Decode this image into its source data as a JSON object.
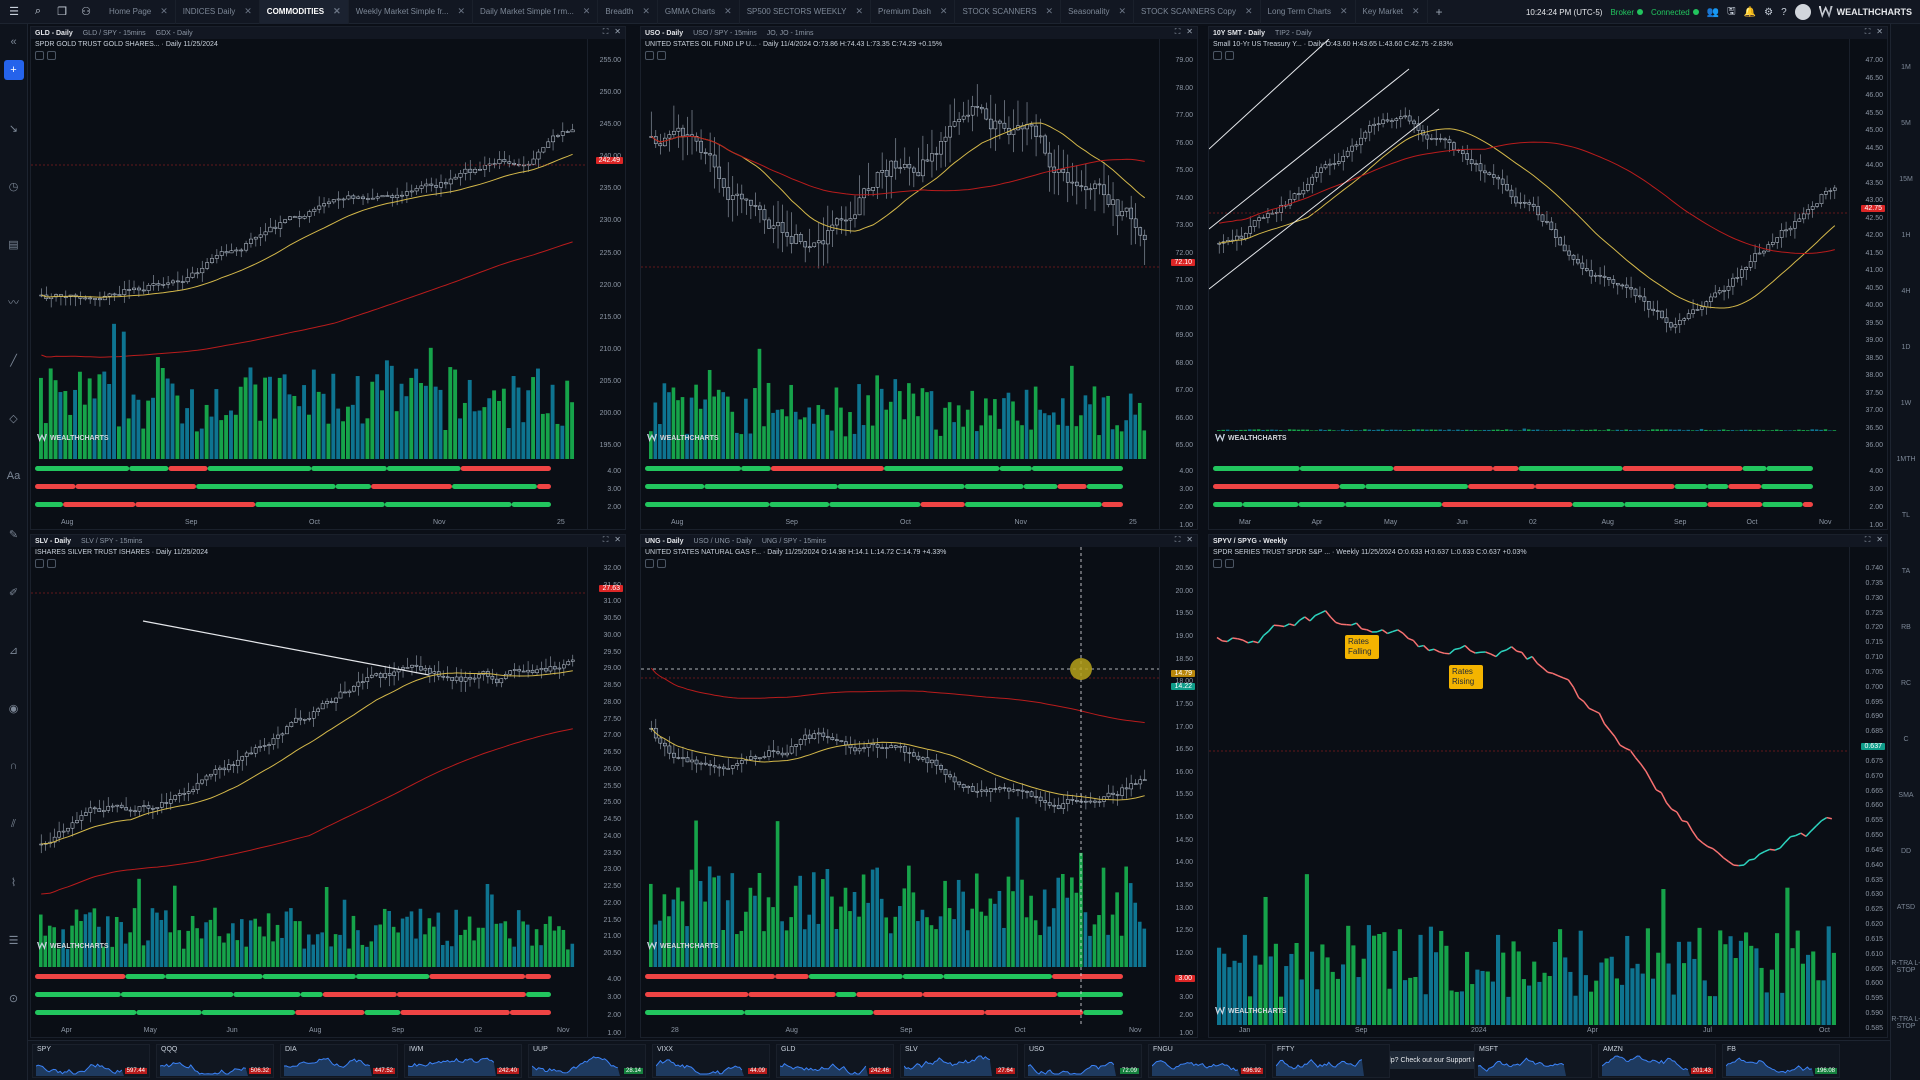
{
  "topbar": {
    "tabs": [
      {
        "label": "Home Page"
      },
      {
        "label": "INDICES Daily"
      },
      {
        "label": "COMMODITIES",
        "active": true
      },
      {
        "label": "Weekly Market Simple fr..."
      },
      {
        "label": "Daily Market Simple f rm..."
      },
      {
        "label": "Breadth"
      },
      {
        "label": "GMMA Charts"
      },
      {
        "label": "SP500 SECTORS WEEKLY"
      },
      {
        "label": "Premium Dash"
      },
      {
        "label": "STOCK SCANNERS"
      },
      {
        "label": "Seasonality"
      },
      {
        "label": "STOCK SCANNERS Copy"
      },
      {
        "label": "Long Term Charts"
      },
      {
        "label": "Key Market"
      }
    ],
    "clock": "10:24:24 PM",
    "timezone": "(UTC-5)",
    "broker_label": "Broker",
    "connected_label": "Connected",
    "brand": "WEALTHCHARTS"
  },
  "right_toolbar": [
    "1M",
    "5M",
    "15M",
    "1H",
    "4H",
    "1D",
    "1W",
    "1MTH",
    "TL",
    "TA",
    "RB",
    "RC",
    "C",
    "SMA",
    "DD",
    "ATSD",
    "R-TRA L-STOP",
    "R-TRA L-STOP"
  ],
  "watermark": "WEALTHCHARTS",
  "panels": {
    "gld": {
      "tabs": [
        "GLD - Daily",
        "GLD / SPY - 15mins",
        "GDX - Daily"
      ],
      "legend": "SPDR GOLD TRUST GOLD SHARES... · Daily 11/25/2024",
      "price_labels": [
        "255.00",
        "250.00",
        "245.00",
        "240.00",
        "235.00",
        "230.00",
        "225.00",
        "220.00",
        "215.00",
        "210.00",
        "205.00",
        "200.00",
        "195.00",
        "4.00",
        "3.00",
        "2.00"
      ],
      "last_price": "242.49",
      "time_labels": [
        "Aug",
        "Sep",
        "Oct",
        "Nov",
        "25"
      ]
    },
    "uso": {
      "tabs": [
        "USO - Daily",
        "USO / SPY - 15mins",
        "JO, JO - 1mins"
      ],
      "legend": "UNITED STATES OIL FUND LP U... · Daily 11/4/2024 O:73.86 H:74.43 L:73.35 C:74.29 +0.15%",
      "price_labels": [
        "79.00",
        "78.00",
        "77.00",
        "76.00",
        "75.00",
        "74.00",
        "73.00",
        "72.00",
        "71.00",
        "70.00",
        "69.00",
        "68.00",
        "67.00",
        "66.00",
        "65.00",
        "4.00",
        "3.00",
        "2.00",
        "1.00"
      ],
      "last_price": "72.10",
      "time_labels": [
        "Aug",
        "Sep",
        "Oct",
        "Nov",
        "25"
      ]
    },
    "tnx": {
      "tabs": [
        "10Y SMT - Daily",
        "TIP2 - Daily"
      ],
      "legend": "Small 10-Yr US Treasury Y... · Daily O:43.60 H:43.65 L:43.60 C:42.75 -2.83%",
      "price_labels": [
        "47.00",
        "46.50",
        "46.00",
        "45.50",
        "45.00",
        "44.50",
        "44.00",
        "43.50",
        "43.00",
        "42.50",
        "42.00",
        "41.50",
        "41.00",
        "40.50",
        "40.00",
        "39.50",
        "39.00",
        "38.50",
        "38.00",
        "37.50",
        "37.00",
        "36.50",
        "36.00",
        "4.00",
        "3.00",
        "2.00",
        "1.00"
      ],
      "last_price": "42.75",
      "time_labels": [
        "Mar",
        "Apr",
        "May",
        "Jun",
        "02",
        "Aug",
        "Sep",
        "Oct",
        "Nov"
      ]
    },
    "slv": {
      "tabs": [
        "SLV - Daily",
        "SLV / SPY - 15mins"
      ],
      "legend": "ISHARES SILVER TRUST ISHARES · Daily 11/25/2024",
      "price_labels": [
        "32.00",
        "31.50",
        "31.00",
        "30.50",
        "30.00",
        "29.50",
        "29.00",
        "28.50",
        "28.00",
        "27.50",
        "27.00",
        "26.50",
        "26.00",
        "25.50",
        "25.00",
        "24.50",
        "24.00",
        "23.50",
        "23.00",
        "22.50",
        "22.00",
        "21.50",
        "21.00",
        "20.50",
        "4.00",
        "3.00",
        "2.00",
        "1.00"
      ],
      "last_price": "27.63",
      "time_labels": [
        "Apr",
        "May",
        "Jun",
        "Aug",
        "Sep",
        "02",
        "Nov"
      ]
    },
    "ung": {
      "tabs": [
        "UNG - Daily",
        "USO / UNG - Daily",
        "UNG / SPY - 15mins"
      ],
      "legend": "UNITED STATES NATURAL GAS F... · Daily 11/25/2024 O:14.98 H:14.1 L:14.72 C:14.79 +4.33%",
      "price_labels": [
        "20.50",
        "20.00",
        "19.50",
        "19.00",
        "18.50",
        "18.00",
        "17.50",
        "17.00",
        "16.50",
        "16.00",
        "15.50",
        "15.00",
        "14.50",
        "14.00",
        "13.50",
        "13.00",
        "12.50",
        "12.00",
        "4.00",
        "3.00",
        "2.00",
        "1.00"
      ],
      "last_price": "14.79",
      "crosshair_price": "14.22",
      "osc_tag": "3.00",
      "time_labels": [
        "28",
        "Aug",
        "Sep",
        "Oct",
        "Nov"
      ]
    },
    "spyv": {
      "tabs": [
        "SPYV / SPYG - Weekly"
      ],
      "legend": "SPDR SERIES TRUST SPDR S&P ... · Weekly 11/25/2024 O:0.633 H:0.637 L:0.633 C:0.637 +0.03%",
      "price_labels": [
        "0.740",
        "0.735",
        "0.730",
        "0.725",
        "0.720",
        "0.715",
        "0.710",
        "0.705",
        "0.700",
        "0.695",
        "0.690",
        "0.685",
        "0.680",
        "0.675",
        "0.670",
        "0.665",
        "0.660",
        "0.655",
        "0.650",
        "0.645",
        "0.640",
        "0.635",
        "0.630",
        "0.625",
        "0.620",
        "0.615",
        "0.610",
        "0.605",
        "0.600",
        "0.595",
        "0.590",
        "0.585"
      ],
      "last_price": "0.637",
      "time_labels": [
        "Jan",
        "Sep",
        "2024",
        "Apr",
        "Jul",
        "Oct"
      ],
      "annotations": [
        "Rates Falling",
        "Rates Rising"
      ]
    }
  },
  "watchlist": [
    {
      "symbol": "SPY",
      "value": "597.44",
      "dir": "dn"
    },
    {
      "symbol": "QQQ",
      "value": "506.32",
      "dir": "dn"
    },
    {
      "symbol": "DIA",
      "value": "447.52",
      "dir": "dn"
    },
    {
      "symbol": "IWM",
      "value": "242.40",
      "dir": "dn"
    },
    {
      "symbol": "UUP",
      "value": "28.14",
      "dir": "up"
    },
    {
      "symbol": "VIXX",
      "value": "44.09",
      "dir": "dn"
    },
    {
      "symbol": "GLD",
      "value": "242.46",
      "dir": "dn"
    },
    {
      "symbol": "SLV",
      "value": "27.64",
      "dir": "dn"
    },
    {
      "symbol": "USO",
      "value": "72.09",
      "dir": "up"
    },
    {
      "symbol": "FNGU",
      "value": "496.92",
      "dir": "dn"
    },
    {
      "symbol": "FFTY",
      "value": "",
      "dir": "up"
    },
    {
      "symbol": "MSFT",
      "value": "",
      "dir": "dn"
    },
    {
      "symbol": "AMZN",
      "value": "201.43",
      "dir": "dn"
    },
    {
      "symbol": "FB",
      "value": "196.08",
      "dir": "up"
    }
  ],
  "support": "Need help? Check out our Support Center"
}
